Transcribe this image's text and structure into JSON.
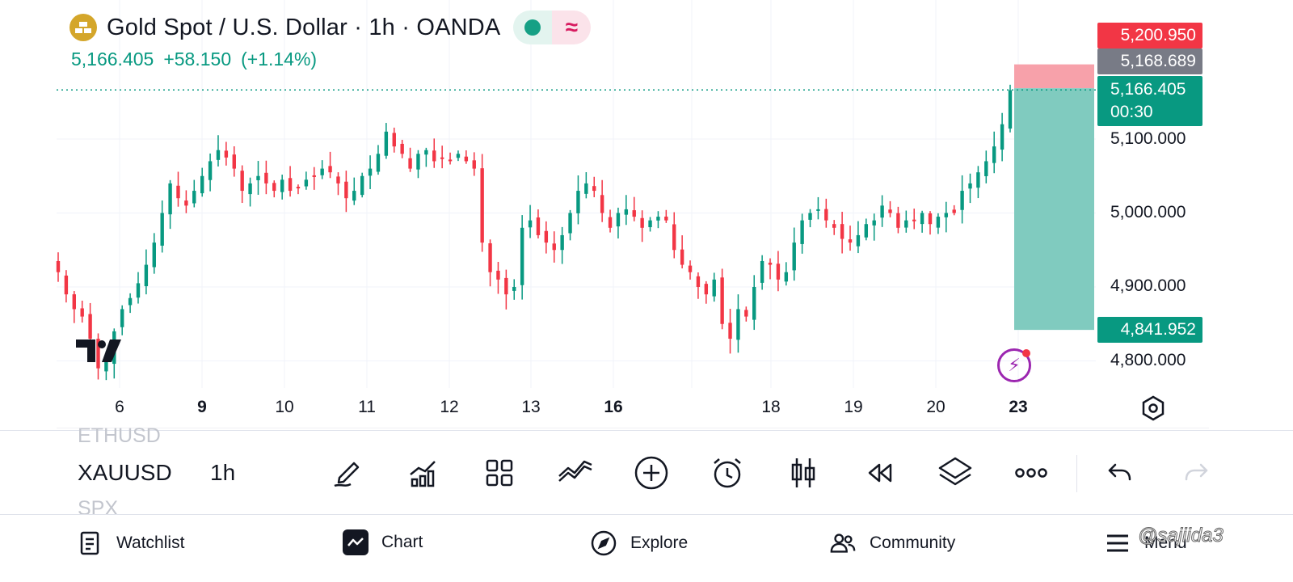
{
  "header": {
    "title": "Gold Spot / U.S. Dollar · 1h · OANDA",
    "last_price": "5,166.405",
    "change": "+58.150",
    "change_pct": "(+1.14%)",
    "market_status_icon": "market-open-dot-icon",
    "data_status_symbol": "≈"
  },
  "price_scale": {
    "tags": {
      "take_profit": "5,200.950",
      "entry": "5,168.689",
      "current": "5,166.405",
      "countdown": "00:30",
      "stop_loss": "4,841.952"
    },
    "ticks": [
      "5,100.000",
      "5,000.000",
      "4,900.000",
      "4,800.000"
    ]
  },
  "time_scale": {
    "labels": [
      {
        "text": "6",
        "bold": false
      },
      {
        "text": "9",
        "bold": true
      },
      {
        "text": "10",
        "bold": false
      },
      {
        "text": "11",
        "bold": false
      },
      {
        "text": "12",
        "bold": false
      },
      {
        "text": "13",
        "bold": false
      },
      {
        "text": "16",
        "bold": true
      },
      {
        "text": "18",
        "bold": false
      },
      {
        "text": "19",
        "bold": false
      },
      {
        "text": "20",
        "bold": false
      },
      {
        "text": "23",
        "bold": true
      }
    ]
  },
  "colors": {
    "up": "#089981",
    "down": "#f23645",
    "profit_zone": "#80cbbf",
    "loss_zone": "#f7a1aa",
    "accent": "#9c27b0"
  },
  "chart_data": {
    "type": "candlestick",
    "ylim": [
      4760,
      5230
    ],
    "ticks": [
      4800,
      4900,
      5000,
      5100
    ],
    "price_line": 5166.405,
    "position": {
      "entry": 5168.689,
      "target": 5200.95,
      "stop": 4841.952
    },
    "closes": [
      4920,
      4890,
      4870,
      4860,
      4830,
      4790,
      4800,
      4840,
      4870,
      4885,
      4905,
      4930,
      4960,
      5000,
      5040,
      5020,
      5010,
      5030,
      5050,
      5070,
      5085,
      5075,
      5060,
      5030,
      5040,
      5050,
      5040,
      5030,
      5045,
      5030,
      5035,
      5045,
      5050,
      5060,
      5055,
      5040,
      5020,
      5030,
      5050,
      5060,
      5080,
      5110,
      5090,
      5080,
      5060,
      5080,
      5085,
      5070,
      5075,
      5070,
      5080,
      5070,
      5060,
      4960,
      4920,
      4910,
      4890,
      4900,
      4980,
      4990,
      4970,
      4960,
      4950,
      4970,
      5000,
      5030,
      5040,
      5030,
      5000,
      4980,
      5000,
      5005,
      4995,
      4980,
      4990,
      4995,
      4990,
      4950,
      4930,
      4920,
      4900,
      4890,
      4910,
      4850,
      4830,
      4870,
      4860,
      4900,
      4935,
      4930,
      4910,
      4920,
      4960,
      4990,
      5000,
      5005,
      4990,
      4980,
      4965,
      4960,
      4970,
      4985,
      4990,
      5010,
      5000,
      4980,
      4990,
      4990,
      5000,
      4985,
      4995,
      5000,
      5000,
      5030,
      5040,
      5055,
      5070,
      5090,
      5120,
      5166
    ]
  },
  "toolbar": {
    "symbol_prev": "ETHUSD",
    "symbol": "XAUUSD",
    "symbol_next": "SPX",
    "interval": "1h",
    "icons": [
      "pencil-icon",
      "indicators-icon",
      "layout-grid-icon",
      "compare-icon",
      "add-icon",
      "alert-icon",
      "candle-style-icon",
      "replay-icon",
      "layers-icon",
      "more-icon",
      "undo-icon",
      "redo-icon"
    ]
  },
  "bottom_nav": {
    "watchlist": "Watchlist",
    "chart": "Chart",
    "explore": "Explore",
    "community": "Community",
    "menu": "Menu",
    "watermark": "@sajiida3"
  }
}
